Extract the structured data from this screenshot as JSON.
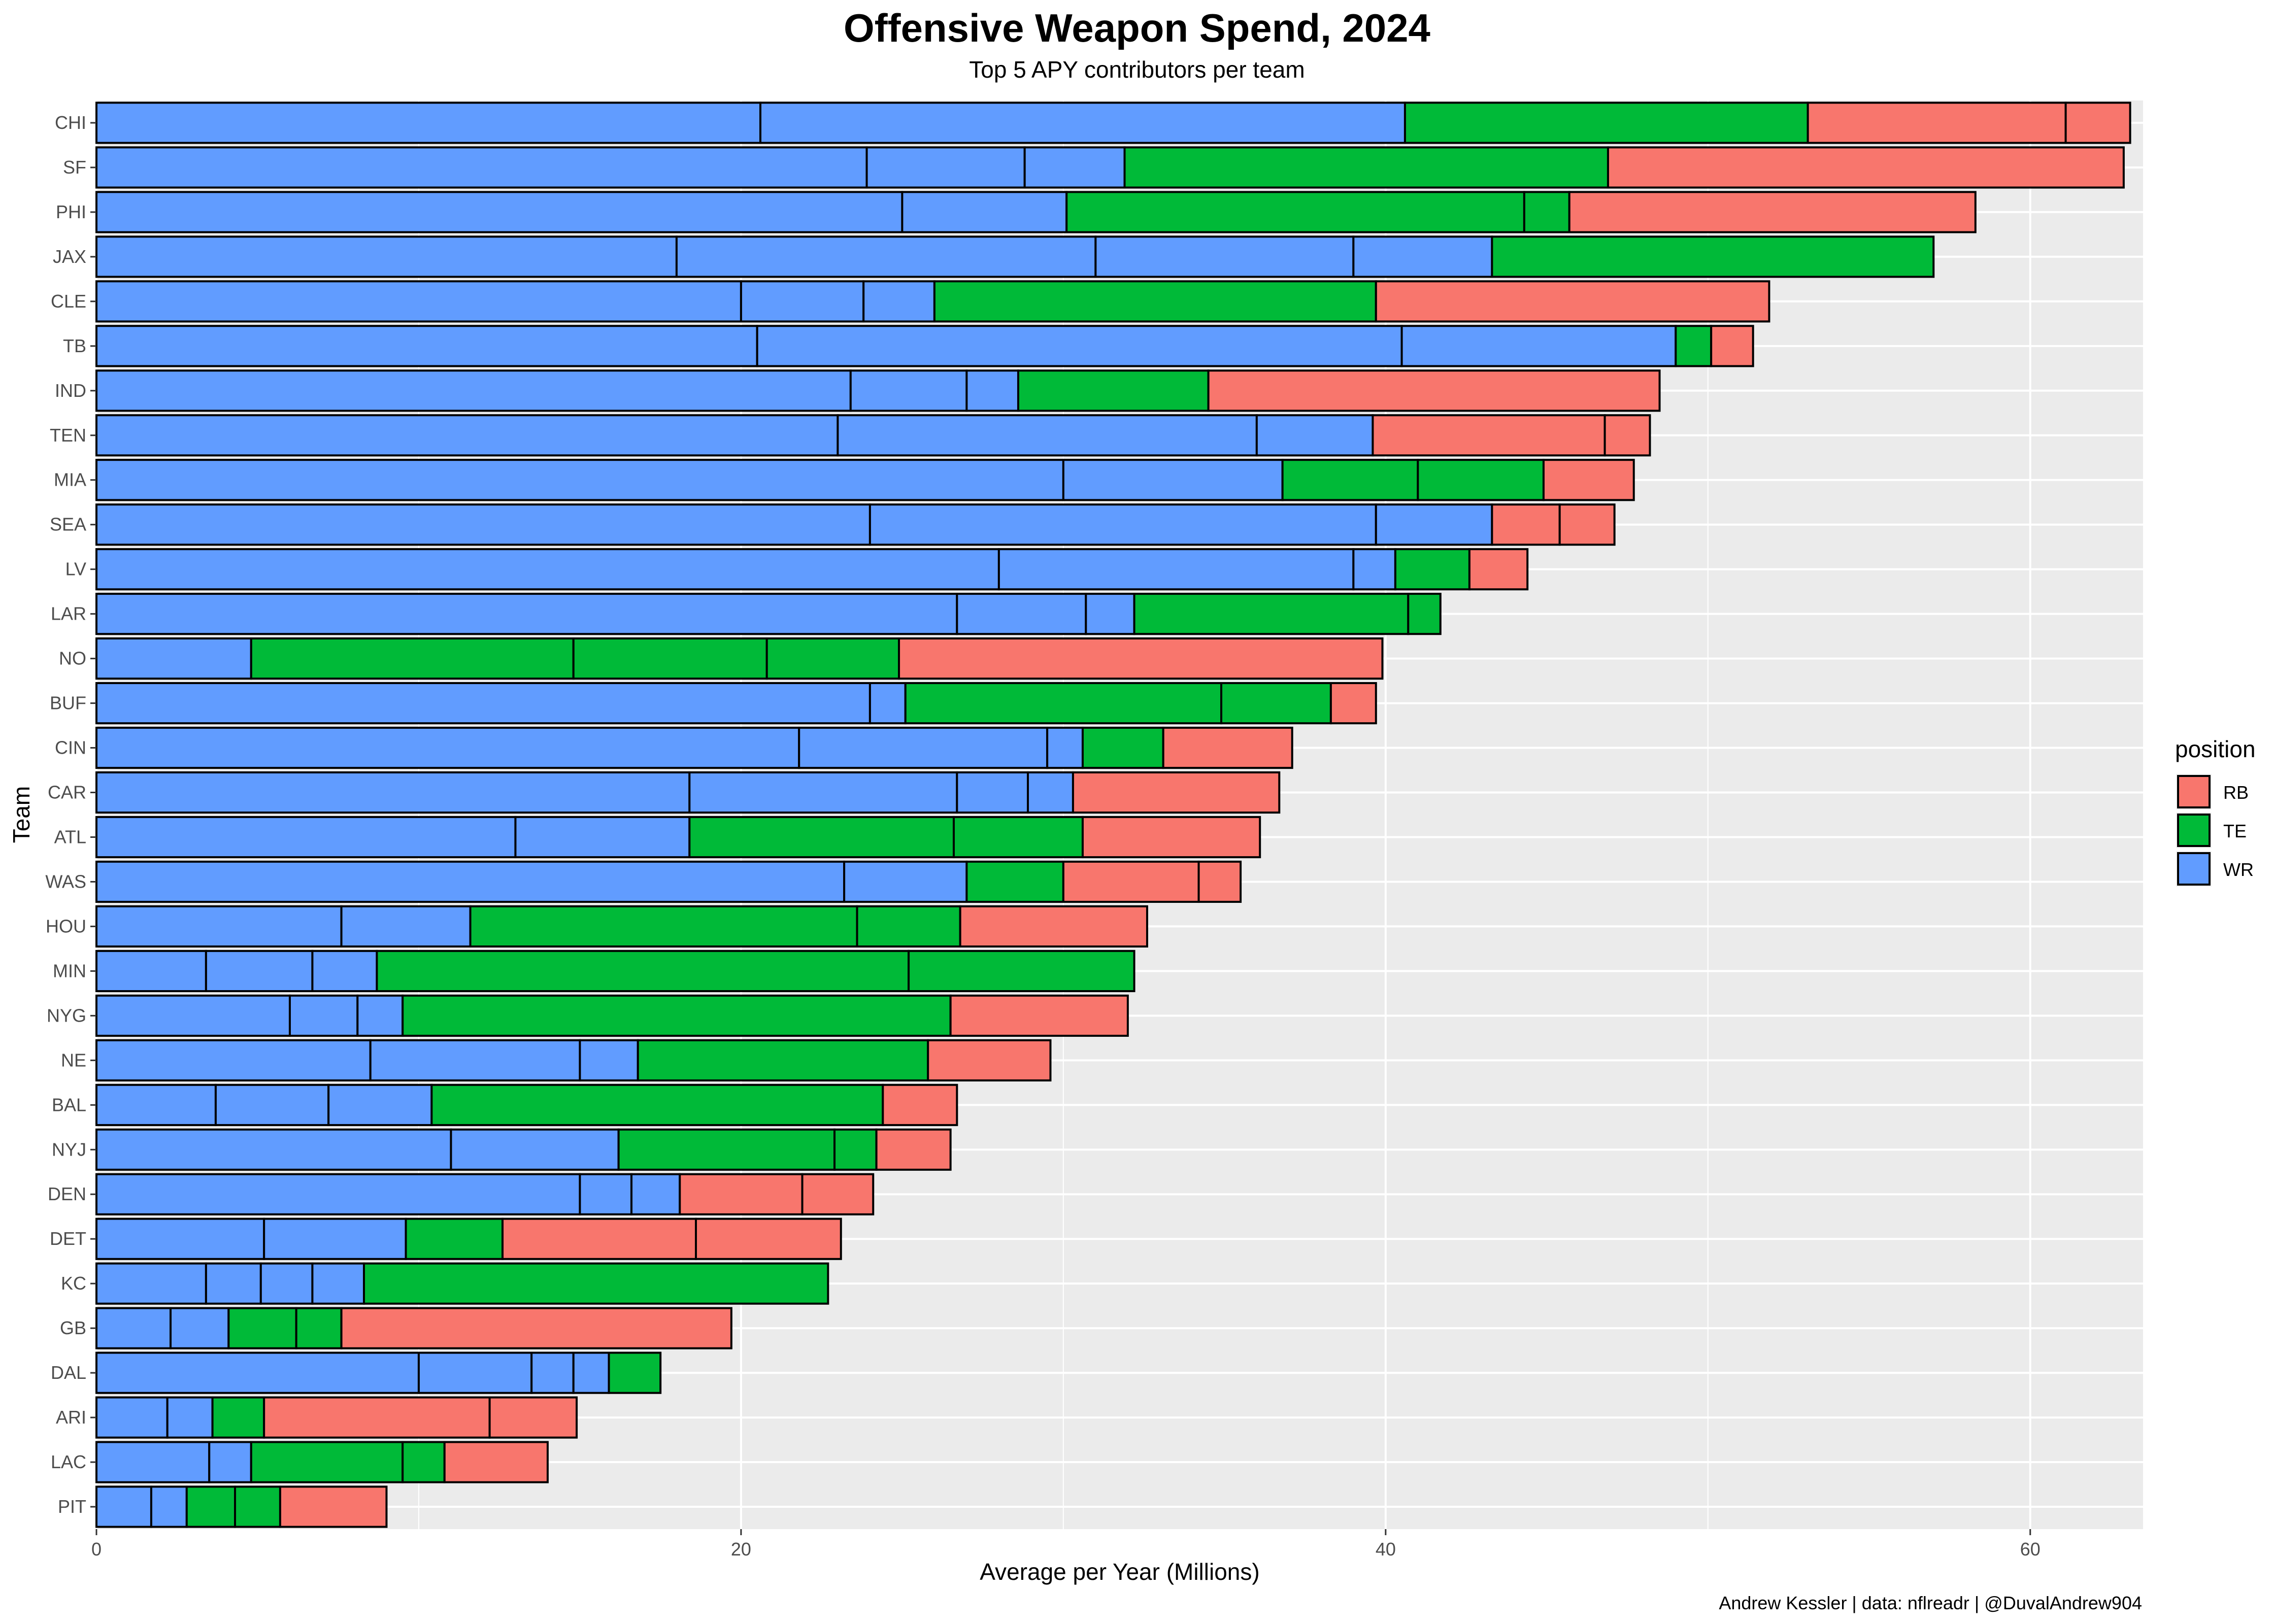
{
  "title": "Offensive Weapon Spend, 2024",
  "subtitle": "Top 5 APY contributors per team",
  "caption": "Andrew Kessler | data: nflreadr | @DuvalAndrew904",
  "colors": {
    "RB": "#F8766D",
    "TE": "#00BA38",
    "WR": "#619CFF",
    "panel": "#EBEBEB",
    "grid": "#FFFFFF"
  },
  "chart_data": {
    "type": "bar",
    "orientation": "horizontal",
    "stacked": true,
    "title": "Offensive Weapon Spend, 2024",
    "subtitle": "Top 5 APY contributors per team",
    "xlabel": "Average per Year (Millions)",
    "ylabel": "Team",
    "xlim": [
      0,
      63.5
    ],
    "xticks": [
      0,
      20,
      40,
      60
    ],
    "grid": true,
    "legend": {
      "title": "position",
      "placement": "right",
      "entries": [
        "RB",
        "TE",
        "WR"
      ]
    },
    "teams": [
      {
        "team": "CHI",
        "segments": [
          [
            "WR",
            20.6
          ],
          [
            "WR",
            20.0
          ],
          [
            "TE",
            12.5
          ],
          [
            "RB",
            8.0
          ],
          [
            "RB",
            2.0
          ]
        ]
      },
      {
        "team": "SF",
        "segments": [
          [
            "WR",
            23.9
          ],
          [
            "WR",
            4.9
          ],
          [
            "WR",
            3.1
          ],
          [
            "TE",
            15.0
          ],
          [
            "RB",
            16.0
          ]
        ]
      },
      {
        "team": "PHI",
        "segments": [
          [
            "WR",
            25.0
          ],
          [
            "WR",
            5.1
          ],
          [
            "TE",
            14.2
          ],
          [
            "TE",
            1.4
          ],
          [
            "RB",
            12.6
          ]
        ]
      },
      {
        "team": "JAX",
        "segments": [
          [
            "WR",
            18.0
          ],
          [
            "WR",
            13.0
          ],
          [
            "WR",
            8.0
          ],
          [
            "WR",
            4.3
          ],
          [
            "TE",
            13.7
          ]
        ]
      },
      {
        "team": "CLE",
        "segments": [
          [
            "WR",
            20.0
          ],
          [
            "WR",
            3.8
          ],
          [
            "WR",
            2.2
          ],
          [
            "TE",
            13.7
          ],
          [
            "RB",
            12.2
          ]
        ]
      },
      {
        "team": "TB",
        "segments": [
          [
            "WR",
            20.5
          ],
          [
            "WR",
            20.0
          ],
          [
            "WR",
            8.5
          ],
          [
            "TE",
            1.1
          ],
          [
            "RB",
            1.3
          ]
        ]
      },
      {
        "team": "IND",
        "segments": [
          [
            "WR",
            23.4
          ],
          [
            "WR",
            3.6
          ],
          [
            "WR",
            1.6
          ],
          [
            "TE",
            5.9
          ],
          [
            "RB",
            14.0
          ]
        ]
      },
      {
        "team": "TEN",
        "segments": [
          [
            "WR",
            23.0
          ],
          [
            "WR",
            13.0
          ],
          [
            "WR",
            3.6
          ],
          [
            "RB",
            7.2
          ],
          [
            "RB",
            1.4
          ]
        ]
      },
      {
        "team": "MIA",
        "segments": [
          [
            "WR",
            30.0
          ],
          [
            "WR",
            6.8
          ],
          [
            "TE",
            4.2
          ],
          [
            "TE",
            3.9
          ],
          [
            "RB",
            2.8
          ]
        ]
      },
      {
        "team": "SEA",
        "segments": [
          [
            "WR",
            24.0
          ],
          [
            "WR",
            15.7
          ],
          [
            "WR",
            3.6
          ],
          [
            "RB",
            2.1
          ],
          [
            "RB",
            1.7
          ]
        ]
      },
      {
        "team": "LV",
        "segments": [
          [
            "WR",
            28.0
          ],
          [
            "WR",
            11.0
          ],
          [
            "WR",
            1.3
          ],
          [
            "TE",
            2.3
          ],
          [
            "RB",
            1.8
          ]
        ]
      },
      {
        "team": "LAR",
        "segments": [
          [
            "WR",
            26.7
          ],
          [
            "WR",
            4.0
          ],
          [
            "WR",
            1.5
          ],
          [
            "TE",
            8.5
          ],
          [
            "TE",
            1.0
          ]
        ]
      },
      {
        "team": "NO",
        "segments": [
          [
            "WR",
            4.8
          ],
          [
            "TE",
            10.0
          ],
          [
            "TE",
            6.0
          ],
          [
            "TE",
            4.1
          ],
          [
            "RB",
            15.0
          ]
        ]
      },
      {
        "team": "BUF",
        "segments": [
          [
            "WR",
            24.0
          ],
          [
            "WR",
            1.1
          ],
          [
            "TE",
            9.8
          ],
          [
            "TE",
            3.4
          ],
          [
            "RB",
            1.4
          ]
        ]
      },
      {
        "team": "CIN",
        "segments": [
          [
            "WR",
            21.8
          ],
          [
            "WR",
            7.7
          ],
          [
            "WR",
            1.1
          ],
          [
            "TE",
            2.5
          ],
          [
            "RB",
            4.0
          ]
        ]
      },
      {
        "team": "CAR",
        "segments": [
          [
            "WR",
            18.4
          ],
          [
            "WR",
            8.3
          ],
          [
            "WR",
            2.2
          ],
          [
            "WR",
            1.4
          ],
          [
            "RB",
            6.4
          ]
        ]
      },
      {
        "team": "ATL",
        "segments": [
          [
            "WR",
            13.0
          ],
          [
            "WR",
            5.4
          ],
          [
            "TE",
            8.2
          ],
          [
            "TE",
            4.0
          ],
          [
            "RB",
            5.5
          ]
        ]
      },
      {
        "team": "WAS",
        "segments": [
          [
            "WR",
            23.2
          ],
          [
            "WR",
            3.8
          ],
          [
            "TE",
            3.0
          ],
          [
            "RB",
            4.2
          ],
          [
            "RB",
            1.3
          ]
        ]
      },
      {
        "team": "HOU",
        "segments": [
          [
            "WR",
            7.6
          ],
          [
            "WR",
            4.0
          ],
          [
            "TE",
            12.0
          ],
          [
            "TE",
            3.2
          ],
          [
            "RB",
            5.8
          ]
        ]
      },
      {
        "team": "MIN",
        "segments": [
          [
            "WR",
            3.4
          ],
          [
            "WR",
            3.3
          ],
          [
            "WR",
            2.0
          ],
          [
            "TE",
            16.5
          ],
          [
            "TE",
            7.0
          ]
        ]
      },
      {
        "team": "NYG",
        "segments": [
          [
            "WR",
            6.0
          ],
          [
            "WR",
            2.1
          ],
          [
            "WR",
            1.4
          ],
          [
            "TE",
            17.0
          ],
          [
            "RB",
            5.5
          ]
        ]
      },
      {
        "team": "NE",
        "segments": [
          [
            "WR",
            8.5
          ],
          [
            "WR",
            6.5
          ],
          [
            "WR",
            1.8
          ],
          [
            "TE",
            9.0
          ],
          [
            "RB",
            3.8
          ]
        ]
      },
      {
        "team": "BAL",
        "segments": [
          [
            "WR",
            3.7
          ],
          [
            "WR",
            3.5
          ],
          [
            "WR",
            3.2
          ],
          [
            "TE",
            14.0
          ],
          [
            "RB",
            2.3
          ]
        ]
      },
      {
        "team": "NYJ",
        "segments": [
          [
            "WR",
            11.0
          ],
          [
            "WR",
            5.2
          ],
          [
            "TE",
            6.7
          ],
          [
            "TE",
            1.3
          ],
          [
            "RB",
            2.3
          ]
        ]
      },
      {
        "team": "DEN",
        "segments": [
          [
            "WR",
            15.0
          ],
          [
            "WR",
            1.6
          ],
          [
            "WR",
            1.5
          ],
          [
            "RB",
            3.8
          ],
          [
            "RB",
            2.2
          ]
        ]
      },
      {
        "team": "DET",
        "segments": [
          [
            "WR",
            5.2
          ],
          [
            "WR",
            4.4
          ],
          [
            "TE",
            3.0
          ],
          [
            "RB",
            6.0
          ],
          [
            "RB",
            4.5
          ]
        ]
      },
      {
        "team": "KC",
        "segments": [
          [
            "WR",
            3.4
          ],
          [
            "WR",
            1.7
          ],
          [
            "WR",
            1.6
          ],
          [
            "WR",
            1.6
          ],
          [
            "TE",
            14.4
          ]
        ]
      },
      {
        "team": "GB",
        "segments": [
          [
            "WR",
            2.3
          ],
          [
            "WR",
            1.8
          ],
          [
            "TE",
            2.1
          ],
          [
            "TE",
            1.4
          ],
          [
            "RB",
            12.1
          ]
        ]
      },
      {
        "team": "DAL",
        "segments": [
          [
            "WR",
            10.0
          ],
          [
            "WR",
            3.5
          ],
          [
            "WR",
            1.3
          ],
          [
            "WR",
            1.1
          ],
          [
            "TE",
            1.6
          ]
        ]
      },
      {
        "team": "ARI",
        "segments": [
          [
            "WR",
            2.2
          ],
          [
            "WR",
            1.4
          ],
          [
            "TE",
            1.6
          ],
          [
            "RB",
            7.0
          ],
          [
            "RB",
            2.7
          ]
        ]
      },
      {
        "team": "LAC",
        "segments": [
          [
            "WR",
            3.5
          ],
          [
            "WR",
            1.3
          ],
          [
            "TE",
            4.7
          ],
          [
            "TE",
            1.3
          ],
          [
            "RB",
            3.2
          ]
        ]
      },
      {
        "team": "PIT",
        "segments": [
          [
            "WR",
            1.7
          ],
          [
            "WR",
            1.1
          ],
          [
            "TE",
            1.5
          ],
          [
            "TE",
            1.4
          ],
          [
            "RB",
            3.3
          ]
        ]
      }
    ]
  }
}
